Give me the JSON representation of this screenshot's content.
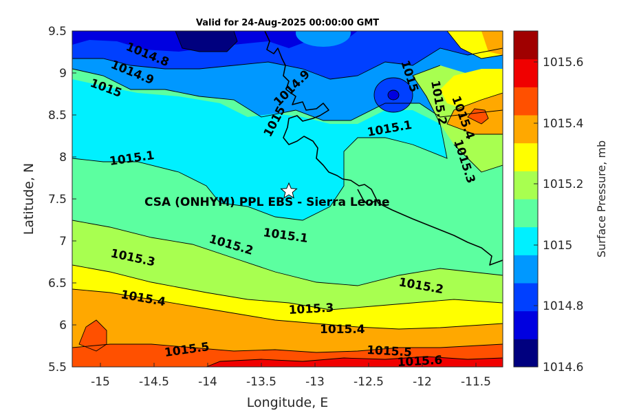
{
  "figure": {
    "title": "Valid for 24-Aug-2025 00:00:00 GMT",
    "x_axis_label": "Longitude, E",
    "y_axis_label": "Latitude, N",
    "x_ticks": [
      "-15",
      "-14.5",
      "-14",
      "-13.5",
      "-13",
      "-12.5",
      "-12",
      "-11.5"
    ],
    "y_ticks": [
      "9.5",
      "9",
      "8.5",
      "8",
      "7.5",
      "7",
      "6.5",
      "6",
      "5.5"
    ],
    "colorbar_label": "Surface Pressure, mb",
    "colorbar_ticks": [
      "1015.6",
      "1015.4",
      "1015.2",
      "1015",
      "1014.8",
      "1014.6"
    ],
    "annotation": "CSA (ONHYM) PPL EBS  - Sierra Leone",
    "contour_labels": [
      "1014.8",
      "1014.9",
      "1015",
      "1015",
      "1015",
      "1014.9",
      "1015.2",
      "1015.4",
      "1015.3",
      "1015.1",
      "1015.1",
      "1015.1",
      "1015.2",
      "1015.2",
      "1015.3",
      "1015.4",
      "1015.3",
      "1015.4",
      "1015.5",
      "1015.5",
      "1015.6"
    ]
  },
  "chart_data": {
    "type": "heatmap",
    "title": "Valid for 24-Aug-2025 00:00:00 GMT",
    "xlabel": "Longitude, E",
    "ylabel": "Latitude, N",
    "xlim": [
      -15.25,
      -11.25
    ],
    "ylim": [
      5.5,
      9.5
    ],
    "variable": "Surface Pressure, mb",
    "colorbar_range": [
      1014.6,
      1015.7
    ],
    "contour_interval": 0.1,
    "colormap": [
      "#00007f",
      "#0000e0",
      "#0040ff",
      "#0098ff",
      "#00f0ff",
      "#5cffa0",
      "#a8ff50",
      "#ffff00",
      "#ffa800",
      "#ff5000",
      "#f00000",
      "#a00000"
    ],
    "marker": {
      "lon": -13.23,
      "lat": 7.6,
      "symbol": "star"
    },
    "pressure_bands": [
      {
        "lat": 9.5,
        "mb": 1014.8
      },
      {
        "lat": 9.0,
        "mb": 1014.9
      },
      {
        "lat": 8.5,
        "mb": 1015.0
      },
      {
        "lat": 8.0,
        "mb": 1015.1
      },
      {
        "lat": 7.5,
        "mb": 1015.15
      },
      {
        "lat": 7.0,
        "mb": 1015.2
      },
      {
        "lat": 6.5,
        "mb": 1015.35
      },
      {
        "lat": 6.0,
        "mb": 1015.45
      },
      {
        "lat": 5.5,
        "mb": 1015.6
      }
    ]
  }
}
